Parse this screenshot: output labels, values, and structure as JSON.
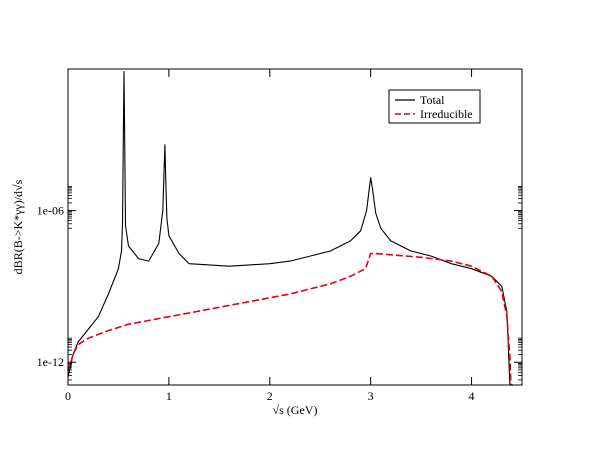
{
  "chart_data": {
    "type": "line",
    "title": "",
    "xlabel": "√s (GeV)",
    "ylabel": "dBR(B->K*γγ)/d√s",
    "xlim": [
      0,
      4.5
    ],
    "ylim_log10": [
      -12.9,
      -0.4
    ],
    "y_scale": "log",
    "x_ticks": [
      "0",
      "1",
      "2",
      "3",
      "4"
    ],
    "y_ticks": [
      {
        "label": "1e-06",
        "log10": -6
      },
      {
        "label": "1e-12",
        "log10": -12
      }
    ],
    "legend": {
      "placement": "top-right",
      "entries": [
        {
          "label": "Total",
          "color": "#000000",
          "style": "solid"
        },
        {
          "label": "Irreducible",
          "color": "#e8000b",
          "style": "dashed"
        }
      ]
    },
    "series": [
      {
        "name": "Total",
        "color": "#000000",
        "style": "solid",
        "x": [
          0.0,
          0.05,
          0.1,
          0.2,
          0.3,
          0.4,
          0.45,
          0.5,
          0.53,
          0.54,
          0.55,
          0.555,
          0.56,
          0.57,
          0.6,
          0.7,
          0.8,
          0.9,
          0.94,
          0.96,
          0.97,
          0.98,
          1.0,
          1.1,
          1.2,
          1.4,
          1.6,
          1.8,
          2.0,
          2.2,
          2.4,
          2.6,
          2.8,
          2.9,
          2.96,
          2.99,
          3.0,
          3.02,
          3.05,
          3.1,
          3.2,
          3.4,
          3.6,
          3.8,
          4.0,
          4.2,
          4.3,
          4.35,
          4.38
        ],
        "y_log10": [
          -12.6,
          -11.7,
          -11.2,
          -10.7,
          -10.2,
          -9.3,
          -8.8,
          -8.3,
          -7.6,
          -6.5,
          -2.4,
          -0.5,
          -2.4,
          -6.6,
          -7.4,
          -7.9,
          -8.0,
          -7.3,
          -6.0,
          -3.4,
          -5.0,
          -6.3,
          -7.0,
          -7.7,
          -8.1,
          -8.15,
          -8.2,
          -8.15,
          -8.1,
          -8.0,
          -7.8,
          -7.6,
          -7.2,
          -6.8,
          -6.0,
          -5.0,
          -4.7,
          -5.2,
          -6.1,
          -6.7,
          -7.2,
          -7.6,
          -7.8,
          -8.1,
          -8.3,
          -8.6,
          -9.0,
          -10.0,
          -12.9
        ]
      },
      {
        "name": "Irreducible",
        "color": "#e8000b",
        "style": "dashed",
        "x": [
          0.0,
          0.05,
          0.1,
          0.2,
          0.4,
          0.6,
          0.8,
          1.0,
          1.2,
          1.4,
          1.6,
          1.8,
          2.0,
          2.2,
          2.4,
          2.6,
          2.8,
          2.95,
          3.0,
          3.05,
          3.2,
          3.5,
          3.8,
          4.0,
          4.2,
          4.3,
          4.35,
          4.38,
          4.39,
          4.41
        ],
        "y_log10": [
          -12.4,
          -11.7,
          -11.3,
          -11.05,
          -10.75,
          -10.5,
          -10.35,
          -10.2,
          -10.05,
          -9.9,
          -9.75,
          -9.6,
          -9.45,
          -9.3,
          -9.1,
          -8.9,
          -8.6,
          -8.3,
          -7.7,
          -7.7,
          -7.75,
          -7.85,
          -8.0,
          -8.2,
          -8.6,
          -9.2,
          -10.2,
          -11.8,
          -12.9,
          -12.9
        ]
      }
    ]
  }
}
